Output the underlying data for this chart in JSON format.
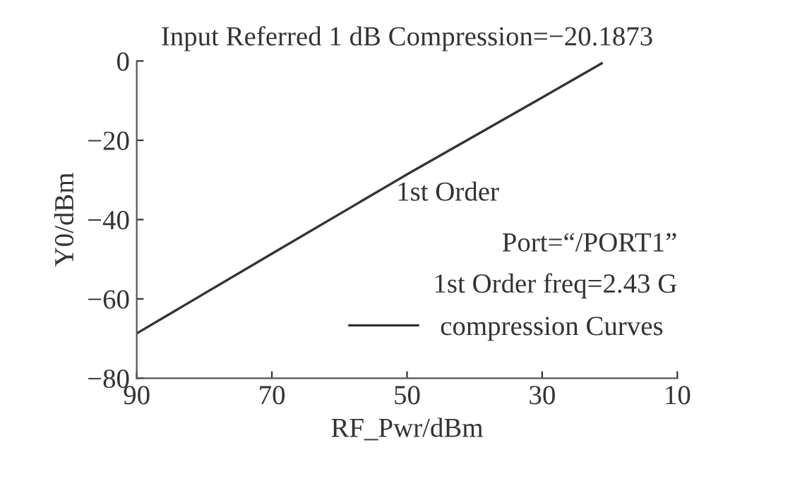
{
  "chart_data": {
    "type": "line",
    "title": "Input Referred 1 dB Compression=−20.1873",
    "xlabel": "RF_Pwr/dBm",
    "ylabel": "Y0/dBm",
    "annotations": [
      "1st Order",
      "Port=“/PORT1”",
      "1st Order freq=2.43 G"
    ],
    "x": [
      90,
      70,
      50,
      30,
      21.2
    ],
    "series": [
      {
        "name": "compression Curves",
        "color": "#333333",
        "values": [
          -68.7,
          -48.6,
          -28.6,
          -9.2,
          -0.6
        ]
      }
    ],
    "xlim": [
      90,
      10
    ],
    "xticks": [
      90,
      70,
      50,
      30,
      10
    ],
    "ylim": [
      -80,
      0
    ],
    "yticks": [
      0,
      -20,
      -40,
      -60,
      -80
    ],
    "grid": false,
    "legend": "bottom right",
    "marker": "none",
    "line_style": "solid"
  }
}
